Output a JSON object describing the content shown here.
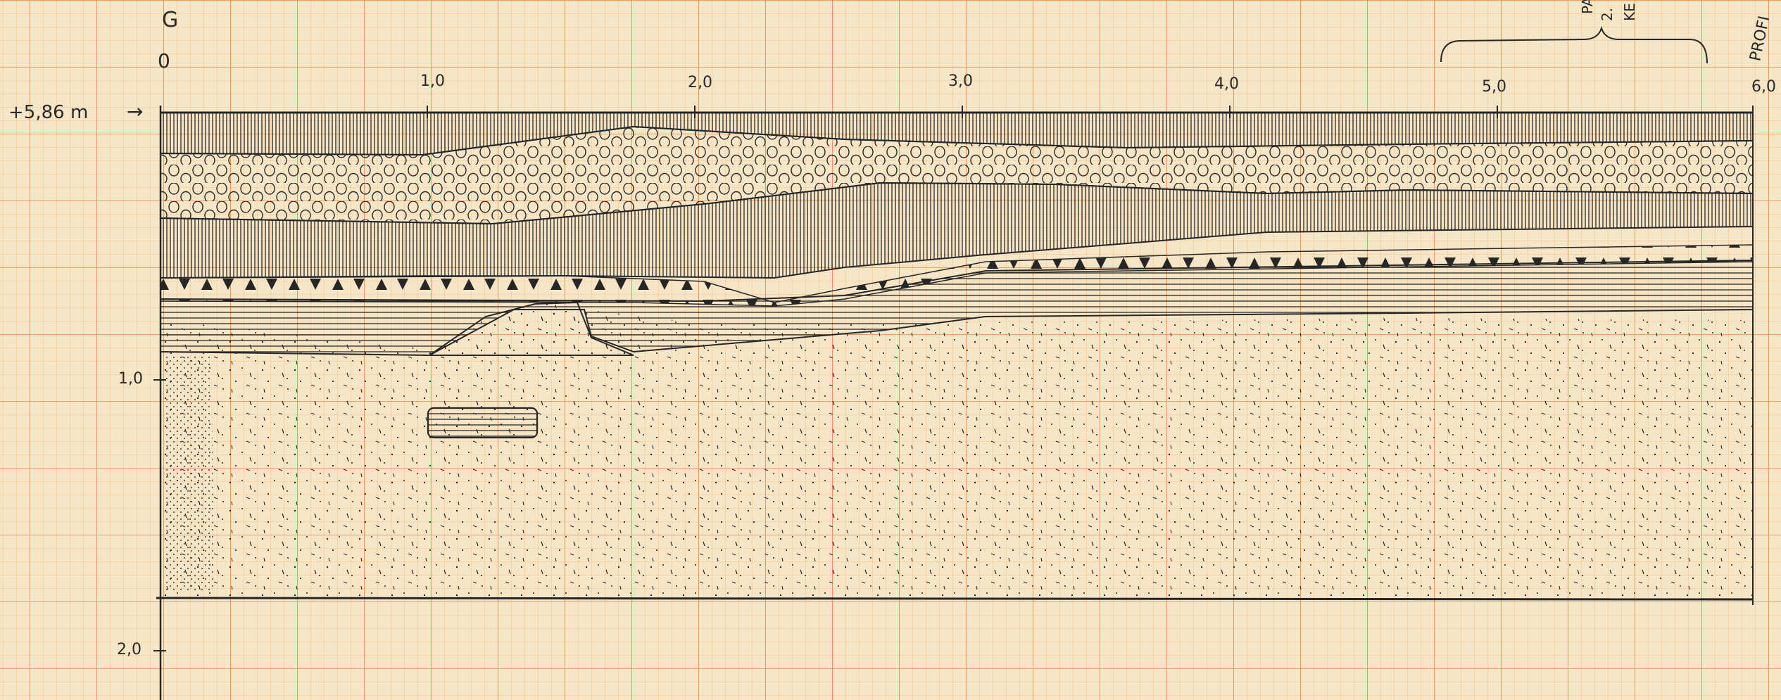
{
  "sheet": {
    "paper_color": "#f6e6c8",
    "grid_minor_color": "#f3b877",
    "grid_major_color": "#e9873a",
    "ink_color": "#262626"
  },
  "labels": {
    "corner_letter": "G",
    "origin": "0",
    "datum": "+5,86 m",
    "datum_arrow": "→",
    "x_ticks": [
      "1,0",
      "2,0",
      "3,0",
      "4,0",
      "5,0",
      "6,0"
    ],
    "y_ticks": [
      "1,0",
      "2,0"
    ],
    "top_right_fragment_1": "PA",
    "top_right_fragment_2": "2.",
    "top_right_fragment_3": "KE",
    "profile_fragment": "PROFI"
  },
  "layers": [
    {
      "id": "topsoil",
      "pattern": "vertical-hatch"
    },
    {
      "id": "cobble-layer",
      "pattern": "circles"
    },
    {
      "id": "hatched-layer",
      "pattern": "vertical-hatch"
    },
    {
      "id": "triangle-layer",
      "pattern": "triangles"
    },
    {
      "id": "laminated-layer",
      "pattern": "horizontal-lines"
    },
    {
      "id": "sand-layer",
      "pattern": "stipple"
    },
    {
      "id": "laminated-lens",
      "pattern": "horizontal-lines"
    }
  ]
}
